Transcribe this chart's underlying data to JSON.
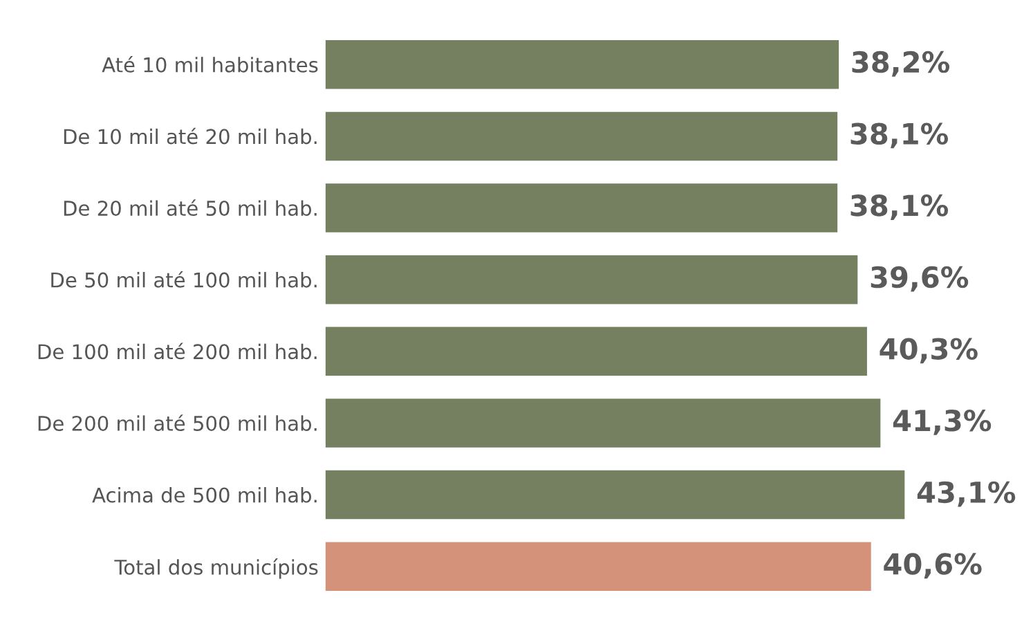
{
  "chart_data": {
    "type": "bar",
    "orientation": "horizontal",
    "categories": [
      "Até 10 mil habitantes",
      "De 10 mil até 20 mil hab.",
      "De 20 mil até 50 mil hab.",
      "De 50 mil até 100 mil hab.",
      "De 100 mil até 200 mil hab.",
      "De 200 mil até 500 mil hab.",
      "Acima de 500 mil hab.",
      "Total dos municípios"
    ],
    "values": [
      38.2,
      38.1,
      38.1,
      39.6,
      40.3,
      41.3,
      43.1,
      40.6
    ],
    "value_labels": [
      "38,2%",
      "38,1%",
      "38,1%",
      "39,6%",
      "40,3%",
      "41,3%",
      "43,1%",
      "40,6%"
    ],
    "colors": [
      "#748060",
      "#748060",
      "#748060",
      "#748060",
      "#748060",
      "#748060",
      "#748060",
      "#d4927a"
    ],
    "tick_labels": "y",
    "grid": false,
    "legend": false
  }
}
